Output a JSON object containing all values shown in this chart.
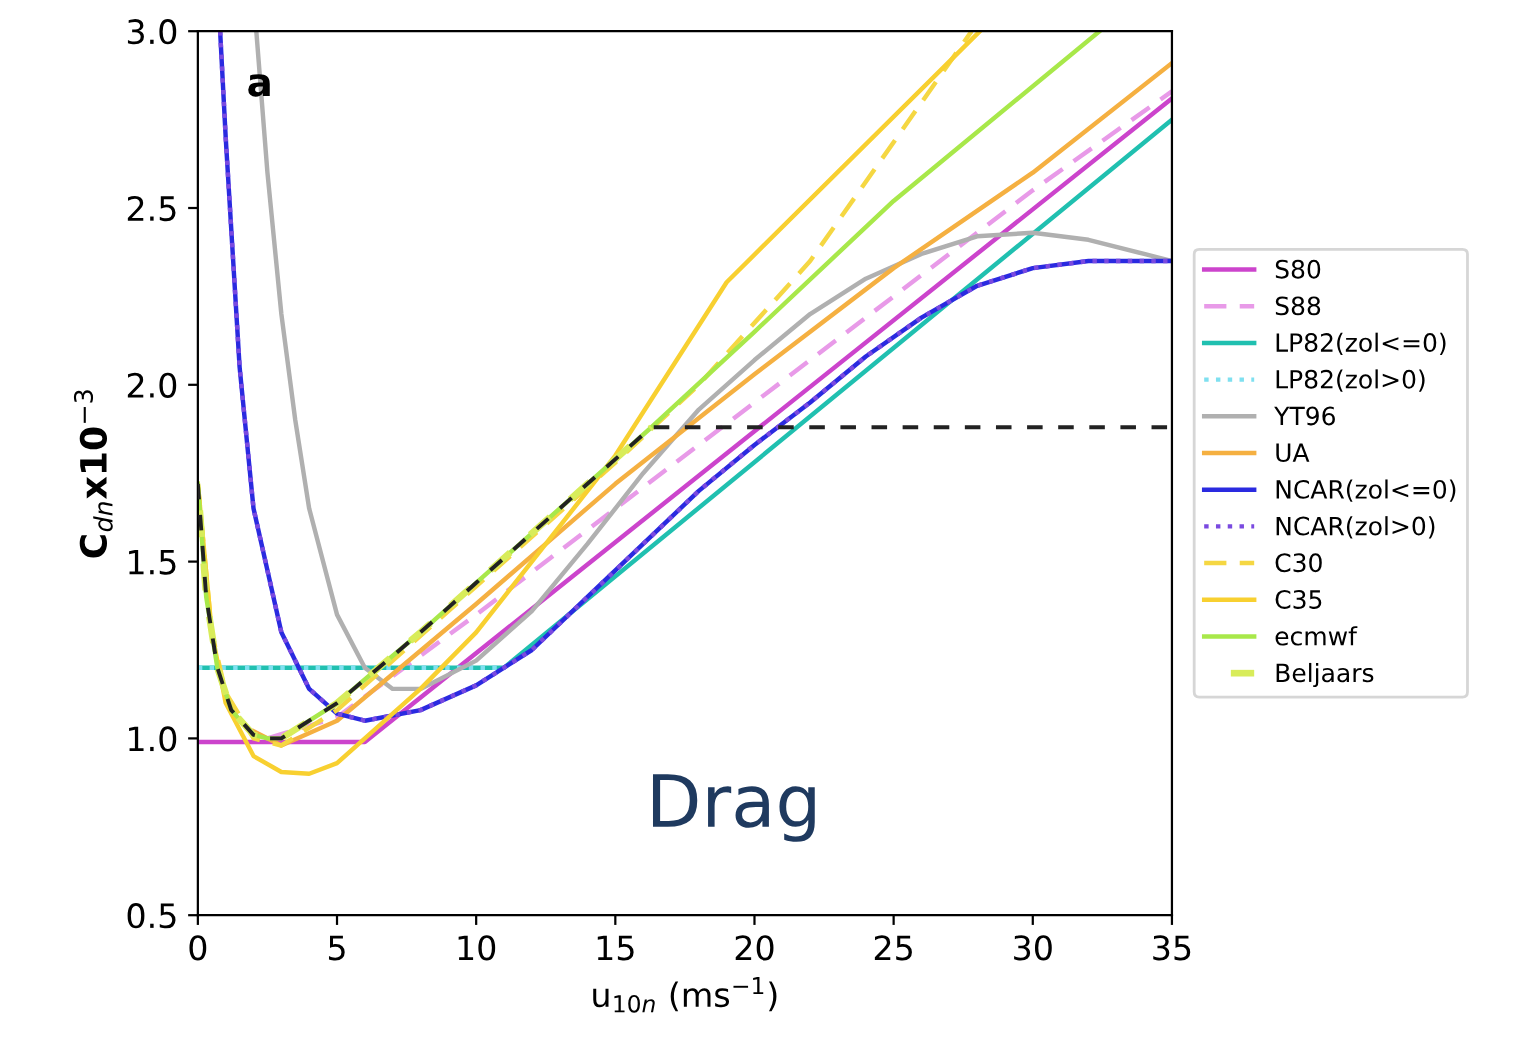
{
  "chart_data": {
    "type": "line",
    "xlabel": "u$_{10n}$ (ms$^{−1}$)",
    "ylabel": "C$_{dn}$x10$^{−3}$",
    "xlim": [
      0,
      35
    ],
    "ylim": [
      0.5,
      3.0
    ],
    "xticks": [
      0,
      5,
      10,
      15,
      20,
      25,
      30,
      35
    ],
    "yticks": [
      {
        "value": 0.5,
        "label": "0.5"
      },
      {
        "value": 1.0,
        "label": "1.0"
      },
      {
        "value": 1.5,
        "label": "1.5"
      },
      {
        "value": 2.0,
        "label": "2.0"
      },
      {
        "value": 2.5,
        "label": "2.5"
      },
      {
        "value": 3.0,
        "label": "3.0"
      }
    ],
    "grid": false,
    "legend": "right",
    "marker": "none",
    "annotations": [
      "a",
      "Drag"
    ],
    "series": [
      {
        "color": "#222222",
        "line_style": "dashed",
        "x": [
          0,
          0.3,
          0.7,
          1.2,
          2,
          2.5,
          3,
          5,
          8,
          10,
          12,
          14,
          16.3,
          35
        ],
        "values": [
          1.72,
          1.4,
          1.2,
          1.08,
          1.01,
          1.0,
          1.0,
          1.1,
          1.3,
          1.44,
          1.58,
          1.72,
          1.88,
          1.88
        ]
      },
      {
        "name": "S80",
        "color": "#cc44cc",
        "line_style": "solid",
        "x": [
          0,
          6,
          35
        ],
        "values": [
          0.99,
          0.99,
          2.81
        ]
      },
      {
        "name": "S88",
        "color": "#e89ae8",
        "line_style": "dashed",
        "x": [
          2.5,
          5,
          10,
          15,
          20,
          25,
          30,
          35
        ],
        "values": [
          1.0,
          1.06,
          1.35,
          1.65,
          1.95,
          2.25,
          2.55,
          2.83
        ]
      },
      {
        "name": "LP82(zol<=0)",
        "color": "#20c0b0",
        "line_style": "solid",
        "x": [
          0,
          11,
          35
        ],
        "values": [
          1.2,
          1.2,
          2.75
        ]
      },
      {
        "name": "LP82(zol>0)",
        "color": "#7fe0f0",
        "line_style": "dotted",
        "x": [
          0,
          11
        ],
        "values": [
          1.2,
          1.2
        ]
      },
      {
        "name": "YT96",
        "color": "#b0b0b0",
        "line_style": "solid",
        "x": [
          2.1,
          2.5,
          3,
          3.5,
          4,
          5,
          6,
          7,
          8,
          10,
          12,
          14,
          16,
          18,
          20,
          22,
          24,
          26,
          28,
          30,
          32,
          34,
          35
        ],
        "values": [
          3.0,
          2.6,
          2.2,
          1.9,
          1.65,
          1.35,
          1.2,
          1.14,
          1.14,
          1.22,
          1.36,
          1.55,
          1.75,
          1.93,
          2.07,
          2.2,
          2.3,
          2.37,
          2.42,
          2.43,
          2.41,
          2.37,
          2.35
        ]
      },
      {
        "name": "UA",
        "color": "#f5b041",
        "line_style": "solid",
        "x": [
          2,
          3,
          5,
          10,
          15,
          20,
          25,
          30,
          35
        ],
        "values": [
          1.02,
          0.98,
          1.05,
          1.38,
          1.72,
          2.03,
          2.33,
          2.6,
          2.91
        ]
      },
      {
        "name": "NCAR(zol<=0)",
        "color": "#2a2ae0",
        "line_style": "solid",
        "x": [
          0.8,
          1,
          1.5,
          2,
          3,
          4,
          5,
          6,
          8,
          10,
          12,
          14,
          16,
          18,
          20,
          22,
          24,
          26,
          28,
          30,
          32,
          35
        ],
        "values": [
          3.0,
          2.7,
          2.05,
          1.65,
          1.3,
          1.14,
          1.07,
          1.05,
          1.08,
          1.15,
          1.25,
          1.4,
          1.55,
          1.7,
          1.83,
          1.95,
          2.08,
          2.19,
          2.28,
          2.33,
          2.35,
          2.35
        ]
      },
      {
        "name": "NCAR(zol>0)",
        "color": "#7a4ae0",
        "line_style": "dotted",
        "x": [
          0.8,
          1,
          1.5,
          2,
          3,
          4,
          5,
          6,
          8,
          10,
          12,
          14,
          16,
          18,
          20,
          22,
          24,
          26,
          28,
          30,
          32,
          35
        ],
        "values": [
          3.0,
          2.7,
          2.05,
          1.65,
          1.3,
          1.14,
          1.07,
          1.05,
          1.08,
          1.15,
          1.25,
          1.4,
          1.55,
          1.7,
          1.83,
          1.95,
          2.08,
          2.19,
          2.28,
          2.33,
          2.35,
          2.35
        ]
      },
      {
        "name": "C30",
        "color": "#f5d742",
        "line_style": "dashed",
        "x": [
          0,
          0.5,
          1,
          2,
          3,
          5,
          10,
          15,
          18,
          22,
          27.8
        ],
        "values": [
          1.72,
          1.3,
          1.13,
          1.0,
          0.98,
          1.08,
          1.43,
          1.78,
          2.0,
          2.35,
          3.0
        ]
      },
      {
        "name": "C35",
        "color": "#f8d030",
        "line_style": "solid",
        "x": [
          0,
          0.5,
          1,
          2,
          3,
          4,
          5,
          6,
          8,
          10,
          12,
          15,
          19,
          28.1
        ],
        "values": [
          1.72,
          1.3,
          1.1,
          0.95,
          0.905,
          0.9,
          0.93,
          1.0,
          1.14,
          1.3,
          1.5,
          1.8,
          2.29,
          3.0
        ]
      },
      {
        "name": "ecmwf",
        "color": "#a8e84a",
        "line_style": "solid",
        "x": [
          0,
          0.3,
          0.7,
          1.2,
          2,
          2.5,
          3,
          5,
          8,
          10,
          12,
          14,
          16.3,
          20,
          25,
          32.4
        ],
        "values": [
          1.72,
          1.4,
          1.2,
          1.08,
          1.01,
          1.0,
          1.0,
          1.1,
          1.3,
          1.44,
          1.58,
          1.72,
          1.88,
          2.15,
          2.52,
          3.0
        ]
      },
      {
        "name": "Beljaars",
        "color": "#d8ec5a",
        "line_style": "dashed",
        "x": [
          0,
          0.3,
          0.7,
          1.2,
          2,
          2.5,
          3,
          5,
          8,
          10,
          12,
          14,
          16.3
        ],
        "values": [
          1.72,
          1.4,
          1.2,
          1.08,
          1.01,
          1.0,
          1.0,
          1.1,
          1.3,
          1.44,
          1.58,
          1.72,
          1.88
        ]
      }
    ]
  }
}
